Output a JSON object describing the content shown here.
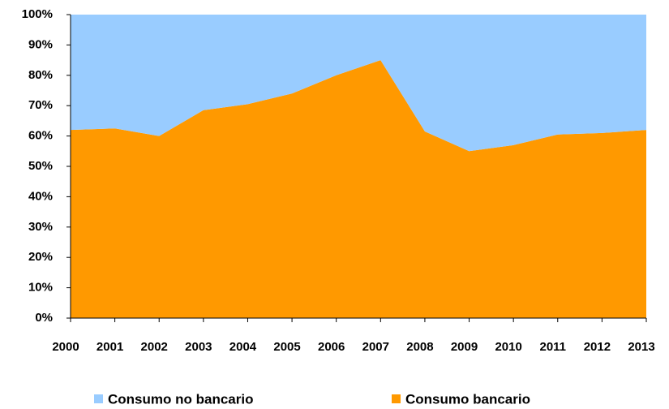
{
  "chart_data": {
    "type": "stacked_area",
    "categories": [
      "2000",
      "2001",
      "2002",
      "2003",
      "2004",
      "2005",
      "2006",
      "2007",
      "2008",
      "2009",
      "2010",
      "2011",
      "2012",
      "2013"
    ],
    "series": [
      {
        "name": "Consumo no bancario",
        "color": "#99ccff",
        "values": [
          38,
          37.5,
          40,
          31.5,
          29.5,
          26,
          20,
          15,
          38.5,
          45,
          43,
          39.5,
          39,
          38
        ]
      },
      {
        "name": "Consumo bancario",
        "color": "#ff9900",
        "values": [
          62,
          62.5,
          60,
          68.5,
          70.5,
          74,
          80,
          85,
          61.5,
          55,
          57,
          60.5,
          61,
          62
        ]
      }
    ],
    "ylim": [
      0,
      100
    ],
    "yticks": [
      {
        "value": 0,
        "label": "0%"
      },
      {
        "value": 10,
        "label": "10%"
      },
      {
        "value": 20,
        "label": "20%"
      },
      {
        "value": 30,
        "label": "30%"
      },
      {
        "value": 40,
        "label": "40%"
      },
      {
        "value": 50,
        "label": "50%"
      },
      {
        "value": 60,
        "label": "60%"
      },
      {
        "value": 70,
        "label": "70%"
      },
      {
        "value": 80,
        "label": "80%"
      },
      {
        "value": 90,
        "label": "90%"
      },
      {
        "value": 100,
        "label": "100%"
      }
    ],
    "legend": "bottom"
  }
}
